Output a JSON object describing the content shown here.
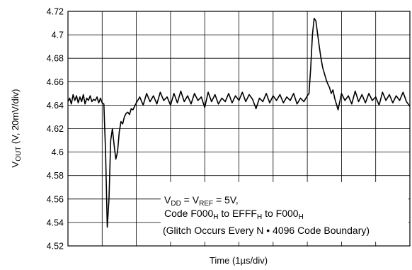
{
  "chart_data": {
    "type": "line",
    "title": "",
    "xlabel": "Time (1µs/div)",
    "ylabel_main": "V",
    "ylabel_sub": "OUT",
    "ylabel_rest": " (V, 20mV/div)",
    "ylim": [
      4.52,
      4.72
    ],
    "yticks": [
      "4.72",
      "4.7",
      "4.68",
      "4.66",
      "4.64",
      "4.62",
      "4.6",
      "4.58",
      "4.56",
      "4.54",
      "4.52"
    ],
    "x_divisions": 10,
    "grid": true,
    "legend": "none",
    "annotation": {
      "line1": {
        "a": "V",
        "a_sub": "DD",
        "b": " = V",
        "b_sub": "REF",
        "c": " = 5V,"
      },
      "line2": {
        "a": "Code F000",
        "a_sub": "H",
        "b": " to EFFF",
        "b_sub": "H",
        "c": " to F000",
        "c_sub": "H"
      },
      "line3": "(Glitch Occurs Every N • 4096 Code Boundary)"
    },
    "series": [
      {
        "line_color": "#000000",
        "x": [
          0,
          0.05,
          0.1,
          0.15,
          0.2,
          0.25,
          0.3,
          0.35,
          0.4,
          0.45,
          0.5,
          0.55,
          0.6,
          0.65,
          0.7,
          0.75,
          0.8,
          0.85,
          0.9,
          0.95,
          1.0,
          1.05,
          1.1,
          1.15,
          1.2,
          1.25,
          1.3,
          1.35,
          1.4,
          1.45,
          1.5,
          1.55,
          1.6,
          1.65,
          1.7,
          1.75,
          1.8,
          1.85,
          1.9,
          2.0,
          2.1,
          2.2,
          2.3,
          2.4,
          2.5,
          2.6,
          2.7,
          2.8,
          2.9,
          3.0,
          3.1,
          3.2,
          3.3,
          3.4,
          3.5,
          3.6,
          3.7,
          3.8,
          3.9,
          4.0,
          4.1,
          4.2,
          4.3,
          4.4,
          4.5,
          4.6,
          4.7,
          4.8,
          4.9,
          5.0,
          5.1,
          5.2,
          5.3,
          5.4,
          5.5,
          5.6,
          5.7,
          5.8,
          5.9,
          6.0,
          6.1,
          6.2,
          6.3,
          6.4,
          6.5,
          6.6,
          6.7,
          6.8,
          6.9,
          7.0,
          7.05,
          7.1,
          7.15,
          7.2,
          7.25,
          7.3,
          7.35,
          7.4,
          7.45,
          7.5,
          7.55,
          7.6,
          7.65,
          7.7,
          7.75,
          7.8,
          7.9,
          8.0,
          8.1,
          8.2,
          8.3,
          8.4,
          8.5,
          8.6,
          8.7,
          8.8,
          8.9,
          9.0,
          9.1,
          9.2,
          9.3,
          9.4,
          9.5,
          9.6,
          9.7,
          9.8,
          9.9,
          10.0
        ],
        "y": [
          4.643,
          4.646,
          4.641,
          4.649,
          4.644,
          4.648,
          4.642,
          4.647,
          4.643,
          4.649,
          4.641,
          4.646,
          4.644,
          4.648,
          4.643,
          4.645,
          4.644,
          4.647,
          4.642,
          4.646,
          4.642,
          4.641,
          4.6,
          4.536,
          4.56,
          4.61,
          4.62,
          4.606,
          4.594,
          4.6,
          4.617,
          4.626,
          4.624,
          4.63,
          4.633,
          4.634,
          4.632,
          4.637,
          4.636,
          4.642,
          4.647,
          4.64,
          4.65,
          4.643,
          4.648,
          4.641,
          4.651,
          4.644,
          4.647,
          4.64,
          4.65,
          4.642,
          4.652,
          4.643,
          4.648,
          4.641,
          4.65,
          4.644,
          4.647,
          4.638,
          4.651,
          4.643,
          4.649,
          4.641,
          4.646,
          4.643,
          4.65,
          4.642,
          4.648,
          4.644,
          4.651,
          4.643,
          4.649,
          4.645,
          4.637,
          4.646,
          4.643,
          4.65,
          4.642,
          4.648,
          4.644,
          4.649,
          4.642,
          4.647,
          4.644,
          4.65,
          4.641,
          4.646,
          4.643,
          4.648,
          4.65,
          4.672,
          4.7,
          4.714,
          4.712,
          4.701,
          4.69,
          4.68,
          4.672,
          4.667,
          4.662,
          4.658,
          4.655,
          4.65,
          4.653,
          4.646,
          4.636,
          4.65,
          4.644,
          4.648,
          4.641,
          4.652,
          4.643,
          4.649,
          4.642,
          4.65,
          4.644,
          4.647,
          4.64,
          4.651,
          4.644,
          4.649,
          4.642,
          4.648,
          4.644,
          4.651,
          4.643,
          4.639
        ]
      }
    ]
  }
}
